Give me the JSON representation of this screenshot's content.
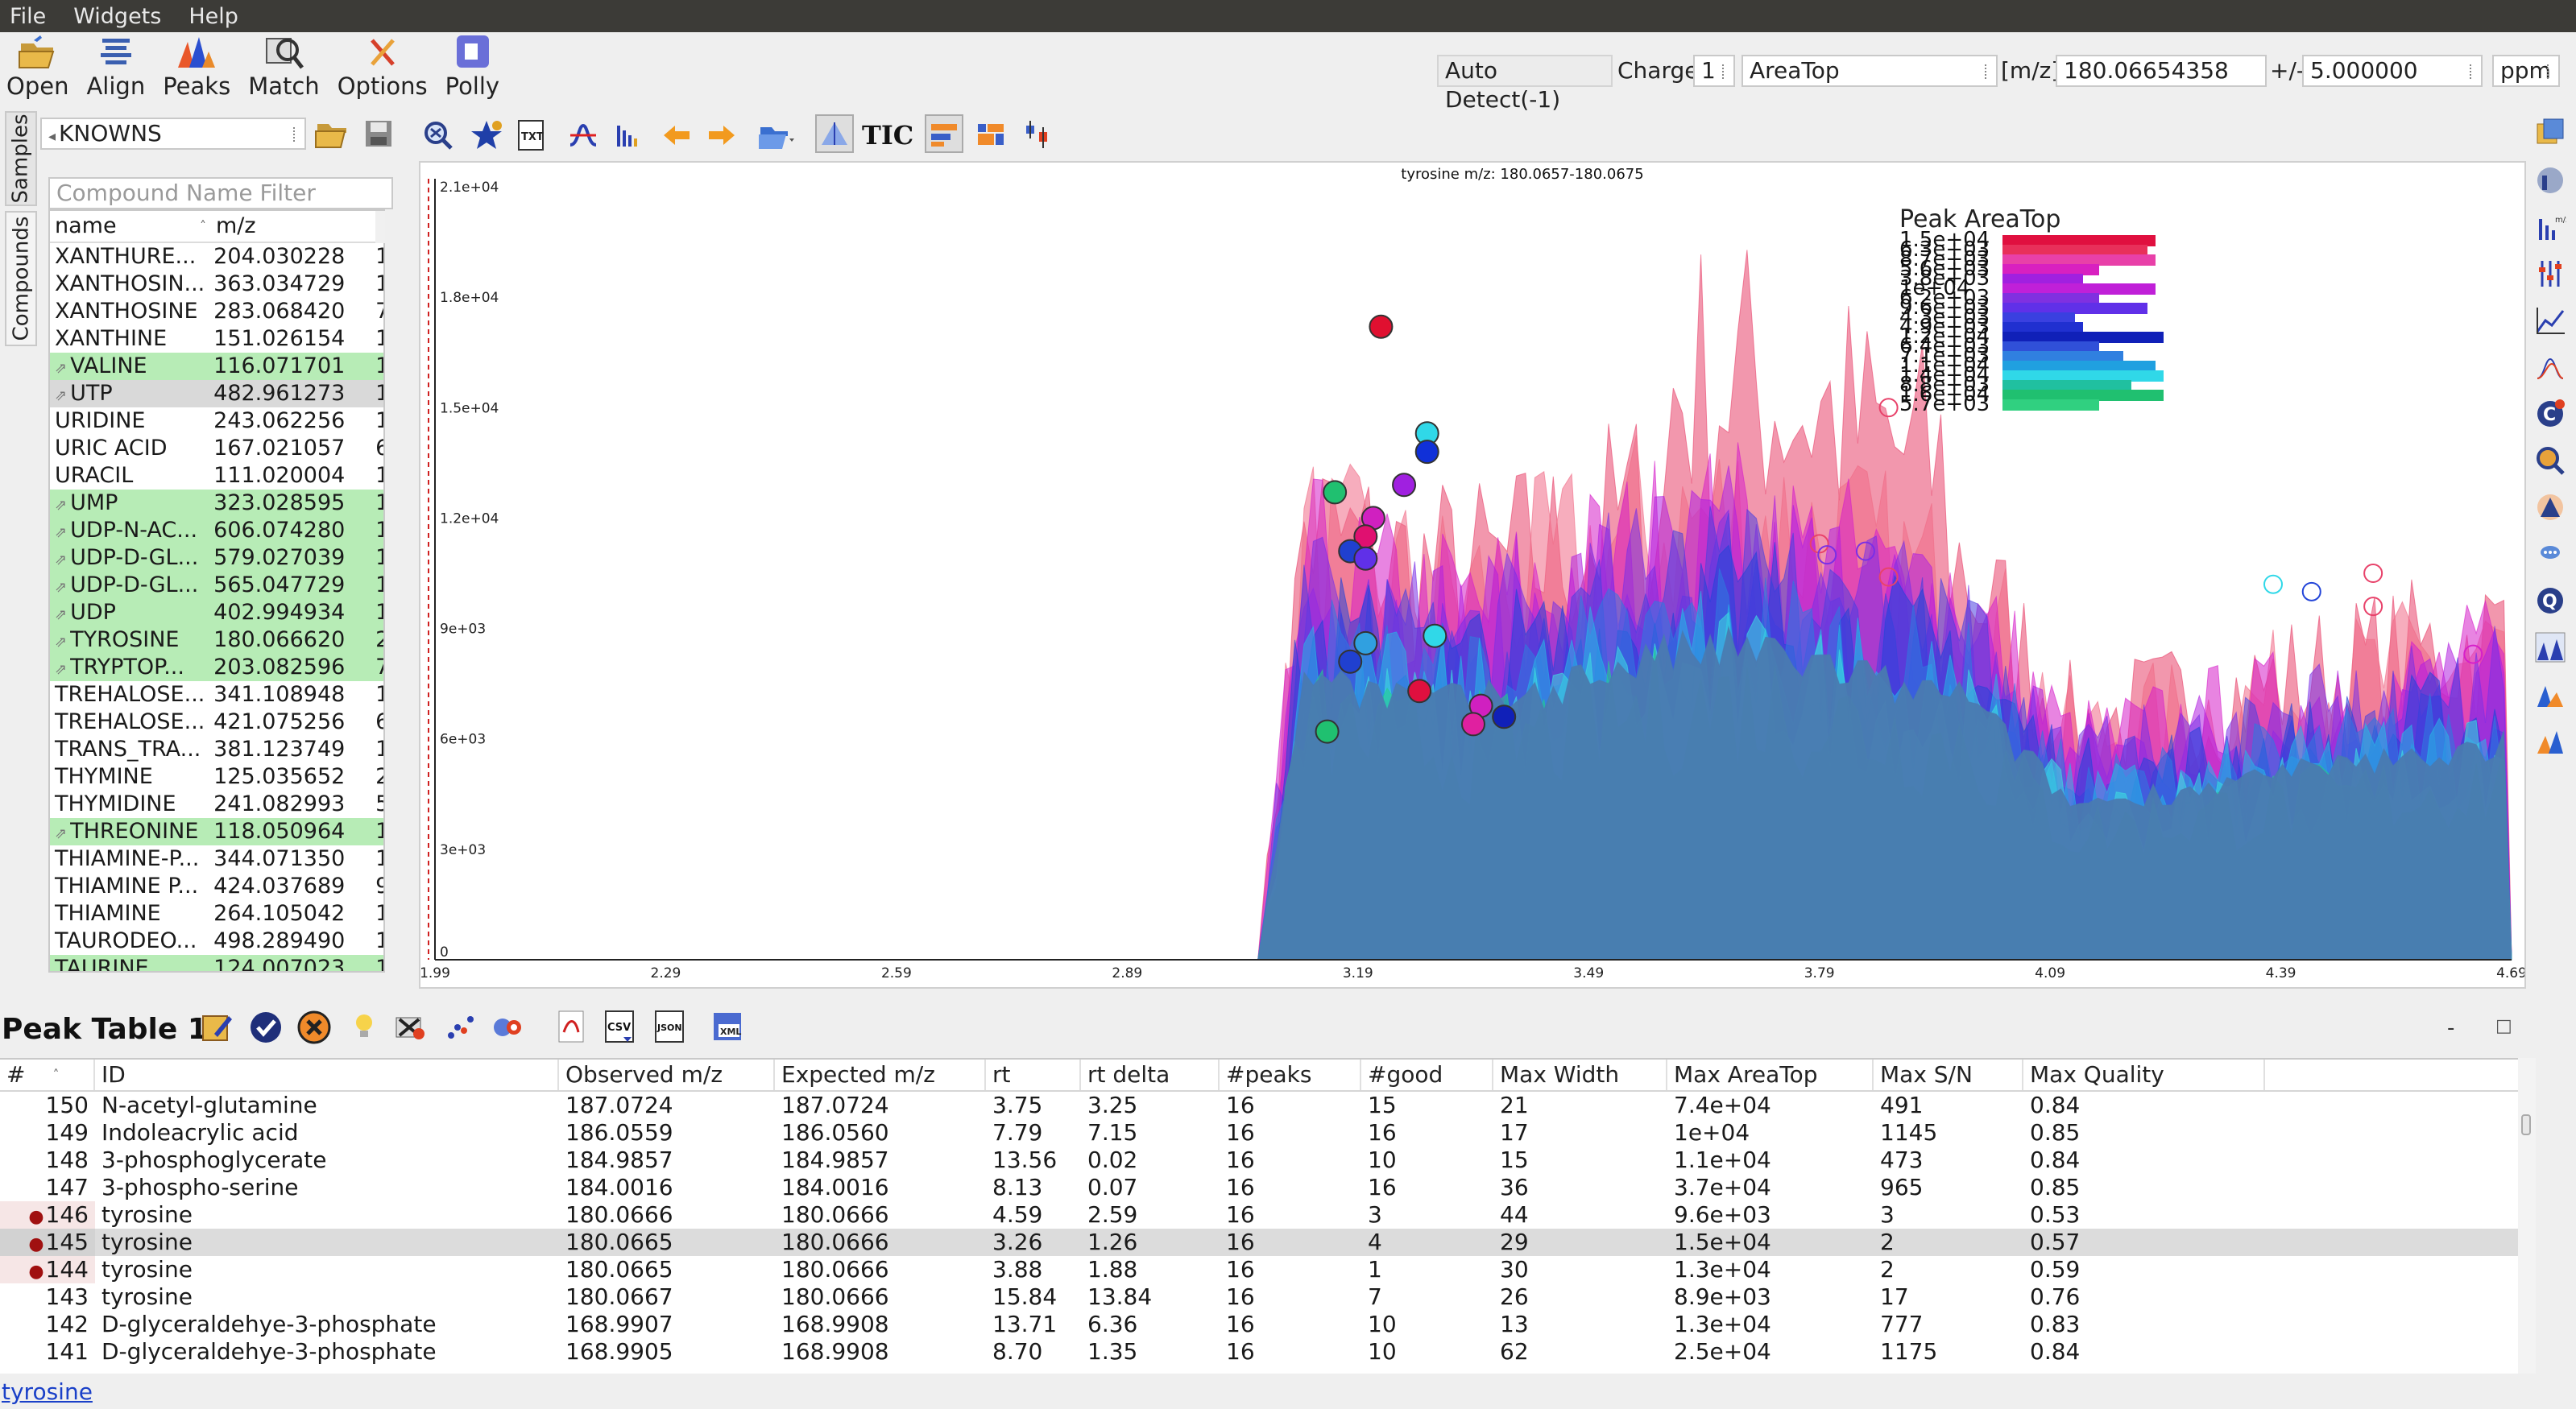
{
  "menubar": {
    "items": [
      "File",
      "Widgets",
      "Help"
    ]
  },
  "toolbar": {
    "buttons": [
      {
        "label": "Open",
        "icon": "folder-open-icon"
      },
      {
        "label": "Align",
        "icon": "align-icon"
      },
      {
        "label": "Peaks",
        "icon": "peaks-icon"
      },
      {
        "label": "Match",
        "icon": "match-icon"
      },
      {
        "label": "Options",
        "icon": "options-icon"
      },
      {
        "label": "Polly",
        "icon": "polly-icon"
      }
    ],
    "auto_detect": "Auto Detect(-1)",
    "charge_label": "Charge",
    "charge_value": "1",
    "quant_type": "AreaTop",
    "mz_label": "[m/z]",
    "mz_value": "180.06654358",
    "tol_label": "+/-",
    "tol_value": "5.000000",
    "tol_unit": "ppm"
  },
  "sidebar": {
    "tabs": [
      "Samples",
      "Compounds"
    ],
    "database": "KNOWNS",
    "filter_placeholder": "Compound Name Filter",
    "columns": [
      "name",
      "m/z"
    ],
    "rows": [
      {
        "name": "XANTHURE...",
        "mz": "204.030228",
        "extra": "1",
        "hl": ""
      },
      {
        "name": "XANTHOSIN...",
        "mz": "363.034729",
        "extra": "1",
        "hl": ""
      },
      {
        "name": "XANTHOSINE",
        "mz": "283.068420",
        "extra": "7",
        "hl": ""
      },
      {
        "name": "XANTHINE",
        "mz": "151.026154",
        "extra": "1",
        "hl": ""
      },
      {
        "name": "VALINE",
        "mz": "116.071701",
        "extra": "1",
        "hl": "green",
        "icon": true
      },
      {
        "name": "UTP",
        "mz": "482.961273",
        "extra": "1",
        "hl": "sel",
        "icon": true
      },
      {
        "name": "URIDINE",
        "mz": "243.062256",
        "extra": "1",
        "hl": ""
      },
      {
        "name": "URIC ACID",
        "mz": "167.021057",
        "extra": "6",
        "hl": ""
      },
      {
        "name": "URACIL",
        "mz": "111.020004",
        "extra": "1",
        "hl": ""
      },
      {
        "name": "UMP",
        "mz": "323.028595",
        "extra": "1",
        "hl": "green",
        "icon": true
      },
      {
        "name": "UDP-N-AC...",
        "mz": "606.074280",
        "extra": "1",
        "hl": "green",
        "icon": true
      },
      {
        "name": "UDP-D-GL...",
        "mz": "579.027039",
        "extra": "1",
        "hl": "green",
        "icon": true
      },
      {
        "name": "UDP-D-GL...",
        "mz": "565.047729",
        "extra": "1",
        "hl": "green",
        "icon": true
      },
      {
        "name": "UDP",
        "mz": "402.994934",
        "extra": "1",
        "hl": "green",
        "icon": true
      },
      {
        "name": "TYROSINE",
        "mz": "180.066620",
        "extra": "2",
        "hl": "green",
        "icon": true
      },
      {
        "name": "TRYPTOP...",
        "mz": "203.082596",
        "extra": "7",
        "hl": "green",
        "icon": true
      },
      {
        "name": "TREHALOSE...",
        "mz": "341.108948",
        "extra": "1",
        "hl": ""
      },
      {
        "name": "TREHALOSE...",
        "mz": "421.075256",
        "extra": "6",
        "hl": ""
      },
      {
        "name": "TRANS_TRA...",
        "mz": "381.123749",
        "extra": "1",
        "hl": ""
      },
      {
        "name": "THYMINE",
        "mz": "125.035652",
        "extra": "2",
        "hl": ""
      },
      {
        "name": "THYMIDINE",
        "mz": "241.082993",
        "extra": "5",
        "hl": ""
      },
      {
        "name": "THREONINE",
        "mz": "118.050964",
        "extra": "1",
        "hl": "green",
        "icon": true
      },
      {
        "name": "THIAMINE-P...",
        "mz": "344.071350",
        "extra": "1",
        "hl": ""
      },
      {
        "name": "THIAMINE P...",
        "mz": "424.037689",
        "extra": "9",
        "hl": ""
      },
      {
        "name": "THIAMINE",
        "mz": "264.105042",
        "extra": "1",
        "hl": ""
      },
      {
        "name": "TAURODEO...",
        "mz": "498.289490",
        "extra": "1",
        "hl": ""
      },
      {
        "name": "TAURINE",
        "mz": "124.007023",
        "extra": "1",
        "hl": "green"
      }
    ]
  },
  "chart_data": {
    "type": "area",
    "title": "tyrosine m/z: 180.0657-180.0675",
    "legend_title": "Peak AreaTop",
    "ylim": [
      0,
      21000
    ],
    "xlim": [
      1.99,
      4.69
    ],
    "y_ticks": [
      "0",
      "3e+03",
      "6e+03",
      "9e+03",
      "1.2e+04",
      "1.5e+04",
      "1.8e+04",
      "2.1e+04"
    ],
    "x_ticks": [
      "1.99",
      "2.29",
      "2.59",
      "2.89",
      "3.19",
      "3.49",
      "3.79",
      "4.09",
      "4.39",
      "4.69"
    ],
    "series_colors": [
      "#e8426a",
      "#f06a86",
      "#d61fc9",
      "#b020e0",
      "#7a2fe6",
      "#4a3fe0",
      "#2244d8",
      "#2f7ae0",
      "#28b6e6",
      "#3ee0e0",
      "#22d08a",
      "#4a7ab0"
    ],
    "legend": [
      {
        "value": "1.5e+04",
        "color": "#e0103f",
        "width": 0.95
      },
      {
        "value": "6.3e+03",
        "color": "#e8305a",
        "width": 0.9
      },
      {
        "value": "8.7e+03",
        "color": "#e840a8",
        "width": 0.95
      },
      {
        "value": "5.6e+03",
        "color": "#d820c0",
        "width": 0.6
      },
      {
        "value": "3.8e+03",
        "color": "#a020e0",
        "width": 0.5
      },
      {
        "value": "1e+04",
        "color": "#c020d8",
        "width": 0.95
      },
      {
        "value": "6.2e+03",
        "color": "#8030e0",
        "width": 0.6
      },
      {
        "value": "9.6e+03",
        "color": "#6030e8",
        "width": 0.9
      },
      {
        "value": "4.3e+03",
        "color": "#3a40e0",
        "width": 0.45
      },
      {
        "value": "4.9e+03",
        "color": "#2030d0",
        "width": 0.5
      },
      {
        "value": "1.2e+04",
        "color": "#1020b8",
        "width": 1.0
      },
      {
        "value": "6.4e+03",
        "color": "#3050d8",
        "width": 0.6
      },
      {
        "value": "7.1e+03",
        "color": "#3080e0",
        "width": 0.75
      },
      {
        "value": "1.1e+04",
        "color": "#20a0e0",
        "width": 0.95
      },
      {
        "value": "1.4e+04",
        "color": "#30d8e8",
        "width": 1.0
      },
      {
        "value": "8.8e+03",
        "color": "#20c0a0",
        "width": 0.8
      },
      {
        "value": "1.6e+04",
        "color": "#20c070",
        "width": 1.0
      },
      {
        "value": "5.7e+03",
        "color": "#30d080",
        "width": 0.6
      }
    ],
    "peak_markers": [
      {
        "x": 3.22,
        "y": 17200,
        "color": "#e01030",
        "filled": true
      },
      {
        "x": 3.28,
        "y": 14300,
        "color": "#30d8e8",
        "filled": true
      },
      {
        "x": 3.28,
        "y": 13800,
        "color": "#1030d8",
        "filled": true
      },
      {
        "x": 3.16,
        "y": 12700,
        "color": "#20c070",
        "filled": true
      },
      {
        "x": 3.21,
        "y": 12000,
        "color": "#d020c0",
        "filled": true
      },
      {
        "x": 3.2,
        "y": 11500,
        "color": "#e01070",
        "filled": true
      },
      {
        "x": 3.18,
        "y": 11100,
        "color": "#2040d0",
        "filled": true
      },
      {
        "x": 3.2,
        "y": 10900,
        "color": "#6030e8",
        "filled": true
      },
      {
        "x": 3.25,
        "y": 12900,
        "color": "#a020e0",
        "filled": true
      },
      {
        "x": 3.29,
        "y": 8800,
        "color": "#30d8e8",
        "filled": true
      },
      {
        "x": 3.2,
        "y": 8600,
        "color": "#30a0e0",
        "filled": true
      },
      {
        "x": 3.18,
        "y": 8100,
        "color": "#2040d0",
        "filled": true
      },
      {
        "x": 3.27,
        "y": 7300,
        "color": "#e0103f",
        "filled": true
      },
      {
        "x": 3.35,
        "y": 6900,
        "color": "#d020c0",
        "filled": true
      },
      {
        "x": 3.38,
        "y": 6600,
        "color": "#1020b8",
        "filled": true
      },
      {
        "x": 3.34,
        "y": 6400,
        "color": "#e020a0",
        "filled": true
      },
      {
        "x": 3.15,
        "y": 6200,
        "color": "#20c070",
        "filled": true
      },
      {
        "x": 3.88,
        "y": 15000,
        "color": "#e8426a",
        "filled": false
      },
      {
        "x": 3.88,
        "y": 10400,
        "color": "#e8426a",
        "filled": false
      },
      {
        "x": 3.79,
        "y": 11300,
        "color": "#e8426a",
        "filled": false
      },
      {
        "x": 3.8,
        "y": 11000,
        "color": "#7a2fe6",
        "filled": false
      },
      {
        "x": 3.85,
        "y": 11100,
        "color": "#7a2fe6",
        "filled": false
      },
      {
        "x": 4.38,
        "y": 10200,
        "color": "#30d8e8",
        "filled": false
      },
      {
        "x": 4.43,
        "y": 10000,
        "color": "#2244d8",
        "filled": false
      },
      {
        "x": 4.51,
        "y": 10500,
        "color": "#e8426a",
        "filled": false
      },
      {
        "x": 4.51,
        "y": 9600,
        "color": "#e8426a",
        "filled": false
      },
      {
        "x": 4.64,
        "y": 8300,
        "color": "#d61fc9",
        "filled": false
      }
    ]
  },
  "peak_table": {
    "title": "Peak Table 1",
    "columns": [
      "#",
      "ID",
      "Observed m/z",
      "Expected m/z",
      "rt",
      "rt delta",
      "#peaks",
      "#good",
      "Max Width",
      "Max AreaTop",
      "Max S/N",
      "Max Quality"
    ],
    "rows": [
      {
        "num": "150",
        "id": "N-acetyl-glutamine",
        "obs": "187.0724",
        "exp": "187.0724",
        "rt": "3.75",
        "rtd": "3.25",
        "peaks": "16",
        "good": "15",
        "width": "21",
        "area": "7.4e+04",
        "sn": "491",
        "q": "0.84",
        "mark": false,
        "sel": false
      },
      {
        "num": "149",
        "id": "Indoleacrylic acid",
        "obs": "186.0559",
        "exp": "186.0560",
        "rt": "7.79",
        "rtd": "7.15",
        "peaks": "16",
        "good": "16",
        "width": "17",
        "area": "1e+04",
        "sn": "1145",
        "q": "0.85",
        "mark": false,
        "sel": false
      },
      {
        "num": "148",
        "id": "3-phosphoglycerate",
        "obs": "184.9857",
        "exp": "184.9857",
        "rt": "13.56",
        "rtd": "0.02",
        "peaks": "16",
        "good": "10",
        "width": "15",
        "area": "1.1e+04",
        "sn": "473",
        "q": "0.84",
        "mark": false,
        "sel": false
      },
      {
        "num": "147",
        "id": "3-phospho-serine",
        "obs": "184.0016",
        "exp": "184.0016",
        "rt": "8.13",
        "rtd": "0.07",
        "peaks": "16",
        "good": "16",
        "width": "36",
        "area": "3.7e+04",
        "sn": "965",
        "q": "0.85",
        "mark": false,
        "sel": false
      },
      {
        "num": "146",
        "id": "tyrosine",
        "obs": "180.0666",
        "exp": "180.0666",
        "rt": "4.59",
        "rtd": "2.59",
        "peaks": "16",
        "good": "3",
        "width": "44",
        "area": "9.6e+03",
        "sn": "3",
        "q": "0.53",
        "mark": true,
        "sel": false
      },
      {
        "num": "145",
        "id": "tyrosine",
        "obs": "180.0665",
        "exp": "180.0666",
        "rt": "3.26",
        "rtd": "1.26",
        "peaks": "16",
        "good": "4",
        "width": "29",
        "area": "1.5e+04",
        "sn": "2",
        "q": "0.57",
        "mark": true,
        "sel": true
      },
      {
        "num": "144",
        "id": "tyrosine",
        "obs": "180.0665",
        "exp": "180.0666",
        "rt": "3.88",
        "rtd": "1.88",
        "peaks": "16",
        "good": "1",
        "width": "30",
        "area": "1.3e+04",
        "sn": "2",
        "q": "0.59",
        "mark": true,
        "sel": false
      },
      {
        "num": "143",
        "id": "tyrosine",
        "obs": "180.0667",
        "exp": "180.0666",
        "rt": "15.84",
        "rtd": "13.84",
        "peaks": "16",
        "good": "7",
        "width": "26",
        "area": "8.9e+03",
        "sn": "17",
        "q": "0.76",
        "mark": false,
        "sel": false
      },
      {
        "num": "142",
        "id": "D-glyceraldehye-3-phosphate",
        "obs": "168.9907",
        "exp": "168.9908",
        "rt": "13.71",
        "rtd": "6.36",
        "peaks": "16",
        "good": "10",
        "width": "13",
        "area": "1.3e+04",
        "sn": "777",
        "q": "0.83",
        "mark": false,
        "sel": false
      },
      {
        "num": "141",
        "id": "D-glyceraldehye-3-phosphate",
        "obs": "168.9905",
        "exp": "168.9908",
        "rt": "8.70",
        "rtd": "1.35",
        "peaks": "16",
        "good": "10",
        "width": "62",
        "area": "2.5e+04",
        "sn": "1175",
        "q": "0.84",
        "mark": false,
        "sel": false
      }
    ]
  },
  "status": {
    "link": "tyrosine"
  }
}
